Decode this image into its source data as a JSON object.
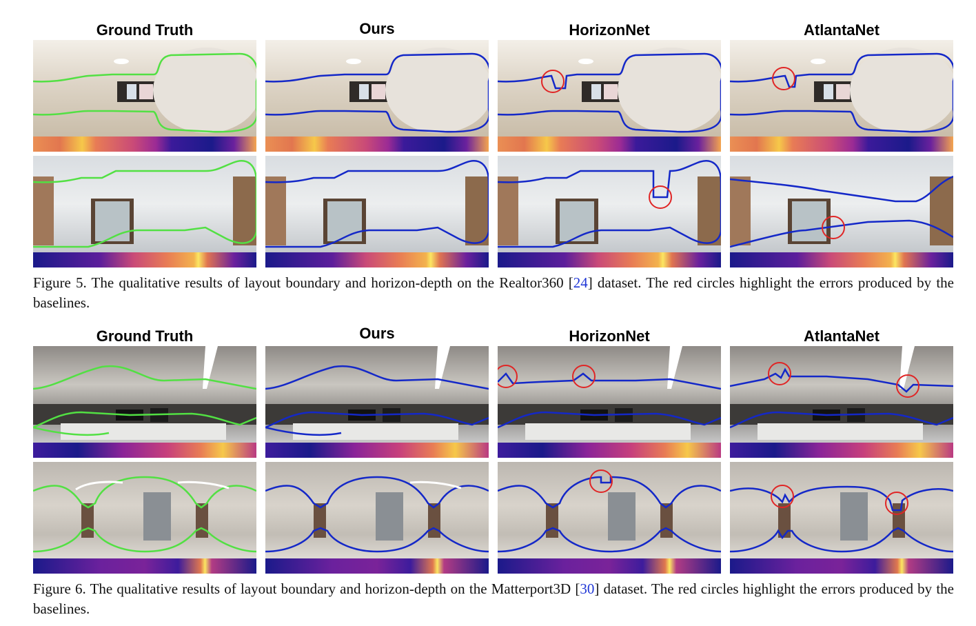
{
  "column_titles": [
    "Ground Truth",
    "Ours",
    "HorizonNet",
    "AtlantaNet"
  ],
  "colors": {
    "ground_truth_line": "#52e043",
    "prediction_line": "#1428c8",
    "error_circle": "#e02525"
  },
  "figures": [
    {
      "caption_prefix": "Figure 5. The qualitative results of layout boundary and horizon-depth on the Realtor360 [",
      "caption_ref": "24",
      "caption_suffix": "] dataset. The red circles highlight the errors produced by the baselines.",
      "rows": [
        {
          "scene": "bright-apartment-room",
          "error_circles": {
            "HorizonNet": 1,
            "AtlantaNet": 1
          }
        },
        {
          "scene": "bathroom-with-window",
          "error_circles": {
            "HorizonNet": 1,
            "AtlantaNet": 1
          }
        }
      ]
    },
    {
      "caption_prefix": "Figure 6. The qualitative results of layout boundary and horizon-depth on the Matterport3D [",
      "caption_ref": "30",
      "caption_suffix": "] dataset. The red circles highlight the errors produced by the baselines.",
      "rows": [
        {
          "scene": "open-plan-office",
          "error_circles": {
            "HorizonNet": 2,
            "AtlantaNet": 2
          }
        },
        {
          "scene": "hallway-lobby",
          "error_circles": {
            "HorizonNet": 1,
            "AtlantaNet": 2
          }
        }
      ]
    }
  ]
}
